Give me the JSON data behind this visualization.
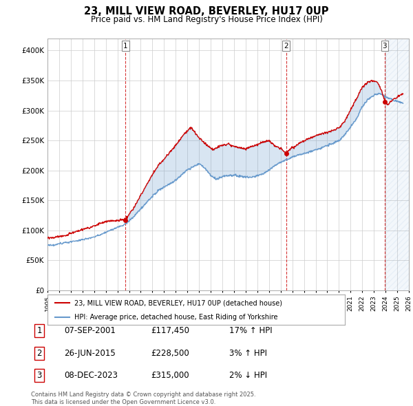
{
  "title": "23, MILL VIEW ROAD, BEVERLEY, HU17 0UP",
  "subtitle": "Price paid vs. HM Land Registry's House Price Index (HPI)",
  "legend_line1": "23, MILL VIEW ROAD, BEVERLEY, HU17 0UP (detached house)",
  "legend_line2": "HPI: Average price, detached house, East Riding of Yorkshire",
  "sale1_date": "07-SEP-2001",
  "sale1_price": "£117,450",
  "sale1_hpi": "17% ↑ HPI",
  "sale2_date": "26-JUN-2015",
  "sale2_price": "£228,500",
  "sale2_hpi": "3% ↑ HPI",
  "sale3_date": "08-DEC-2023",
  "sale3_price": "£315,000",
  "sale3_hpi": "2% ↓ HPI",
  "footnote": "Contains HM Land Registry data © Crown copyright and database right 2025.\nThis data is licensed under the Open Government Licence v3.0.",
  "red_color": "#cc0000",
  "blue_color": "#6699cc",
  "fill_color": "#d0e4f7",
  "bg_color": "#ffffff",
  "grid_color": "#cccccc",
  "ylim_min": 0,
  "ylim_max": 420000,
  "sale1_year": 2001.68,
  "sale2_year": 2015.48,
  "sale3_year": 2023.93,
  "xmin": 1995,
  "xmax": 2026
}
